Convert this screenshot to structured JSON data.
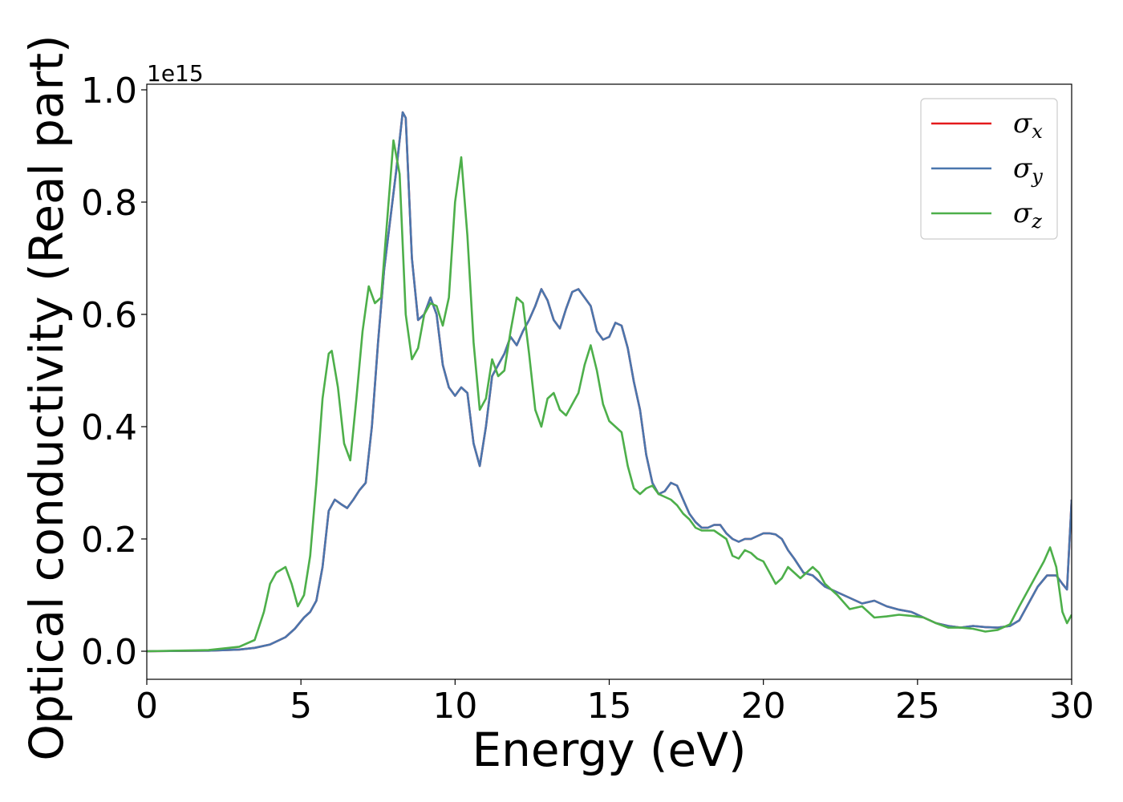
{
  "chart_data": {
    "type": "line",
    "xlabel": "Energy (eV)",
    "ylabel": "Optical conductivity (Real part)",
    "y_offset_label": "1e15",
    "xlim": [
      0,
      30
    ],
    "ylim": [
      -0.05,
      1.01
    ],
    "y_scale_factor": 1000000000000000.0,
    "xticks": [
      0,
      5,
      10,
      15,
      20,
      25,
      30
    ],
    "xtick_labels": [
      "0",
      "5",
      "10",
      "15",
      "20",
      "25",
      "30"
    ],
    "yticks": [
      0.0,
      0.2,
      0.4,
      0.6,
      0.8,
      1.0
    ],
    "ytick_labels": [
      "0.0",
      "0.2",
      "0.4",
      "0.6",
      "0.8",
      "1.0"
    ],
    "legend_position": "top-right",
    "grid": false,
    "series": [
      {
        "name": "σx",
        "name_base": "σ",
        "name_sub": "x",
        "color": "#e41a1c",
        "x": [
          0,
          2,
          3,
          3.5,
          4,
          4.5,
          4.8,
          5.1,
          5.3,
          5.5,
          5.7,
          5.9,
          6.1,
          6.3,
          6.5,
          6.7,
          6.9,
          7.1,
          7.3,
          7.5,
          7.7,
          7.9,
          8.1,
          8.3,
          8.4,
          8.6,
          8.8,
          9.0,
          9.2,
          9.4,
          9.6,
          9.8,
          10.0,
          10.2,
          10.4,
          10.6,
          10.8,
          11.0,
          11.2,
          11.4,
          11.6,
          11.8,
          12.0,
          12.2,
          12.4,
          12.6,
          12.8,
          13.0,
          13.2,
          13.4,
          13.6,
          13.8,
          14.0,
          14.2,
          14.4,
          14.6,
          14.8,
          15.0,
          15.2,
          15.4,
          15.6,
          15.8,
          16.0,
          16.2,
          16.4,
          16.6,
          16.8,
          17.0,
          17.2,
          17.4,
          17.6,
          17.8,
          18.0,
          18.2,
          18.4,
          18.6,
          18.8,
          19.0,
          19.2,
          19.4,
          19.6,
          19.8,
          20.0,
          20.2,
          20.4,
          20.6,
          20.8,
          21.0,
          21.3,
          21.6,
          22.0,
          22.4,
          22.8,
          23.2,
          23.6,
          24.0,
          24.4,
          24.8,
          25.2,
          25.6,
          26.0,
          26.4,
          26.8,
          27.2,
          27.6,
          28.0,
          28.3,
          28.6,
          28.9,
          29.2,
          29.5,
          29.7,
          29.85,
          30.0
        ],
        "y": [
          0.0,
          0.001,
          0.003,
          0.006,
          0.012,
          0.025,
          0.04,
          0.06,
          0.07,
          0.09,
          0.15,
          0.25,
          0.27,
          0.262,
          0.255,
          0.27,
          0.287,
          0.3,
          0.4,
          0.55,
          0.68,
          0.77,
          0.86,
          0.96,
          0.95,
          0.7,
          0.59,
          0.6,
          0.63,
          0.6,
          0.51,
          0.47,
          0.455,
          0.47,
          0.46,
          0.37,
          0.33,
          0.4,
          0.49,
          0.51,
          0.53,
          0.56,
          0.545,
          0.57,
          0.59,
          0.615,
          0.645,
          0.625,
          0.59,
          0.575,
          0.61,
          0.64,
          0.645,
          0.63,
          0.615,
          0.57,
          0.555,
          0.56,
          0.585,
          0.58,
          0.54,
          0.48,
          0.43,
          0.35,
          0.3,
          0.28,
          0.285,
          0.3,
          0.295,
          0.27,
          0.245,
          0.23,
          0.22,
          0.22,
          0.225,
          0.225,
          0.21,
          0.2,
          0.195,
          0.2,
          0.2,
          0.205,
          0.21,
          0.21,
          0.208,
          0.2,
          0.18,
          0.165,
          0.14,
          0.135,
          0.115,
          0.105,
          0.095,
          0.085,
          0.09,
          0.08,
          0.074,
          0.07,
          0.06,
          0.05,
          0.045,
          0.042,
          0.045,
          0.043,
          0.042,
          0.045,
          0.055,
          0.085,
          0.115,
          0.135,
          0.135,
          0.12,
          0.11,
          0.27
        ]
      },
      {
        "name": "σy",
        "name_base": "σ",
        "name_sub": "y",
        "color": "#4a76ad",
        "x": [
          0,
          2,
          3,
          3.5,
          4,
          4.5,
          4.8,
          5.1,
          5.3,
          5.5,
          5.7,
          5.9,
          6.1,
          6.3,
          6.5,
          6.7,
          6.9,
          7.1,
          7.3,
          7.5,
          7.7,
          7.9,
          8.1,
          8.3,
          8.4,
          8.6,
          8.8,
          9.0,
          9.2,
          9.4,
          9.6,
          9.8,
          10.0,
          10.2,
          10.4,
          10.6,
          10.8,
          11.0,
          11.2,
          11.4,
          11.6,
          11.8,
          12.0,
          12.2,
          12.4,
          12.6,
          12.8,
          13.0,
          13.2,
          13.4,
          13.6,
          13.8,
          14.0,
          14.2,
          14.4,
          14.6,
          14.8,
          15.0,
          15.2,
          15.4,
          15.6,
          15.8,
          16.0,
          16.2,
          16.4,
          16.6,
          16.8,
          17.0,
          17.2,
          17.4,
          17.6,
          17.8,
          18.0,
          18.2,
          18.4,
          18.6,
          18.8,
          19.0,
          19.2,
          19.4,
          19.6,
          19.8,
          20.0,
          20.2,
          20.4,
          20.6,
          20.8,
          21.0,
          21.3,
          21.6,
          22.0,
          22.4,
          22.8,
          23.2,
          23.6,
          24.0,
          24.4,
          24.8,
          25.2,
          25.6,
          26.0,
          26.4,
          26.8,
          27.2,
          27.6,
          28.0,
          28.3,
          28.6,
          28.9,
          29.2,
          29.5,
          29.7,
          29.85,
          30.0
        ],
        "y": [
          0.0,
          0.001,
          0.003,
          0.006,
          0.012,
          0.025,
          0.04,
          0.06,
          0.07,
          0.09,
          0.15,
          0.25,
          0.27,
          0.262,
          0.255,
          0.27,
          0.287,
          0.3,
          0.4,
          0.55,
          0.68,
          0.77,
          0.86,
          0.96,
          0.95,
          0.7,
          0.59,
          0.6,
          0.63,
          0.6,
          0.51,
          0.47,
          0.455,
          0.47,
          0.46,
          0.37,
          0.33,
          0.4,
          0.49,
          0.51,
          0.53,
          0.56,
          0.545,
          0.57,
          0.59,
          0.615,
          0.645,
          0.625,
          0.59,
          0.575,
          0.61,
          0.64,
          0.645,
          0.63,
          0.615,
          0.57,
          0.555,
          0.56,
          0.585,
          0.58,
          0.54,
          0.48,
          0.43,
          0.35,
          0.3,
          0.28,
          0.285,
          0.3,
          0.295,
          0.27,
          0.245,
          0.23,
          0.22,
          0.22,
          0.225,
          0.225,
          0.21,
          0.2,
          0.195,
          0.2,
          0.2,
          0.205,
          0.21,
          0.21,
          0.208,
          0.2,
          0.18,
          0.165,
          0.14,
          0.135,
          0.115,
          0.105,
          0.095,
          0.085,
          0.09,
          0.08,
          0.074,
          0.07,
          0.06,
          0.05,
          0.045,
          0.042,
          0.045,
          0.043,
          0.042,
          0.045,
          0.055,
          0.085,
          0.115,
          0.135,
          0.135,
          0.12,
          0.11,
          0.27
        ]
      },
      {
        "name": "σz",
        "name_base": "σ",
        "name_sub": "z",
        "color": "#4daf4a",
        "x": [
          0,
          2,
          3,
          3.5,
          3.8,
          4.0,
          4.2,
          4.5,
          4.7,
          4.9,
          5.1,
          5.3,
          5.5,
          5.7,
          5.9,
          6.0,
          6.2,
          6.4,
          6.6,
          6.8,
          7.0,
          7.2,
          7.4,
          7.6,
          7.8,
          8.0,
          8.2,
          8.4,
          8.6,
          8.8,
          9.0,
          9.2,
          9.4,
          9.6,
          9.8,
          10.0,
          10.2,
          10.4,
          10.6,
          10.8,
          11.0,
          11.2,
          11.4,
          11.6,
          11.8,
          12.0,
          12.2,
          12.4,
          12.6,
          12.8,
          13.0,
          13.2,
          13.4,
          13.6,
          13.8,
          14.0,
          14.2,
          14.4,
          14.6,
          14.8,
          15.0,
          15.2,
          15.4,
          15.6,
          15.8,
          16.0,
          16.2,
          16.4,
          16.6,
          16.8,
          17.0,
          17.2,
          17.4,
          17.6,
          17.8,
          18.0,
          18.4,
          18.8,
          19.0,
          19.2,
          19.4,
          19.6,
          19.8,
          20.0,
          20.2,
          20.4,
          20.6,
          20.8,
          21.0,
          21.2,
          21.4,
          21.6,
          21.8,
          22.0,
          22.4,
          22.8,
          23.2,
          23.6,
          24.0,
          24.4,
          24.8,
          25.2,
          25.6,
          26.0,
          26.4,
          26.8,
          27.2,
          27.6,
          28.0,
          28.3,
          28.6,
          28.9,
          29.1,
          29.3,
          29.5,
          29.7,
          29.85,
          30.0
        ],
        "y": [
          0.0,
          0.002,
          0.008,
          0.02,
          0.07,
          0.12,
          0.14,
          0.15,
          0.12,
          0.08,
          0.1,
          0.17,
          0.3,
          0.45,
          0.53,
          0.535,
          0.47,
          0.37,
          0.34,
          0.45,
          0.57,
          0.65,
          0.62,
          0.63,
          0.77,
          0.91,
          0.85,
          0.6,
          0.52,
          0.54,
          0.6,
          0.62,
          0.615,
          0.58,
          0.63,
          0.8,
          0.88,
          0.74,
          0.55,
          0.43,
          0.45,
          0.52,
          0.49,
          0.5,
          0.57,
          0.63,
          0.62,
          0.53,
          0.43,
          0.4,
          0.45,
          0.46,
          0.43,
          0.42,
          0.44,
          0.46,
          0.51,
          0.545,
          0.5,
          0.44,
          0.41,
          0.4,
          0.39,
          0.33,
          0.29,
          0.28,
          0.29,
          0.295,
          0.28,
          0.275,
          0.27,
          0.26,
          0.245,
          0.235,
          0.22,
          0.215,
          0.215,
          0.2,
          0.17,
          0.165,
          0.18,
          0.175,
          0.165,
          0.16,
          0.14,
          0.12,
          0.13,
          0.15,
          0.14,
          0.13,
          0.14,
          0.15,
          0.14,
          0.12,
          0.1,
          0.075,
          0.08,
          0.06,
          0.062,
          0.065,
          0.063,
          0.06,
          0.05,
          0.042,
          0.042,
          0.04,
          0.035,
          0.038,
          0.048,
          0.08,
          0.11,
          0.14,
          0.16,
          0.185,
          0.15,
          0.07,
          0.05,
          0.065
        ]
      }
    ]
  }
}
